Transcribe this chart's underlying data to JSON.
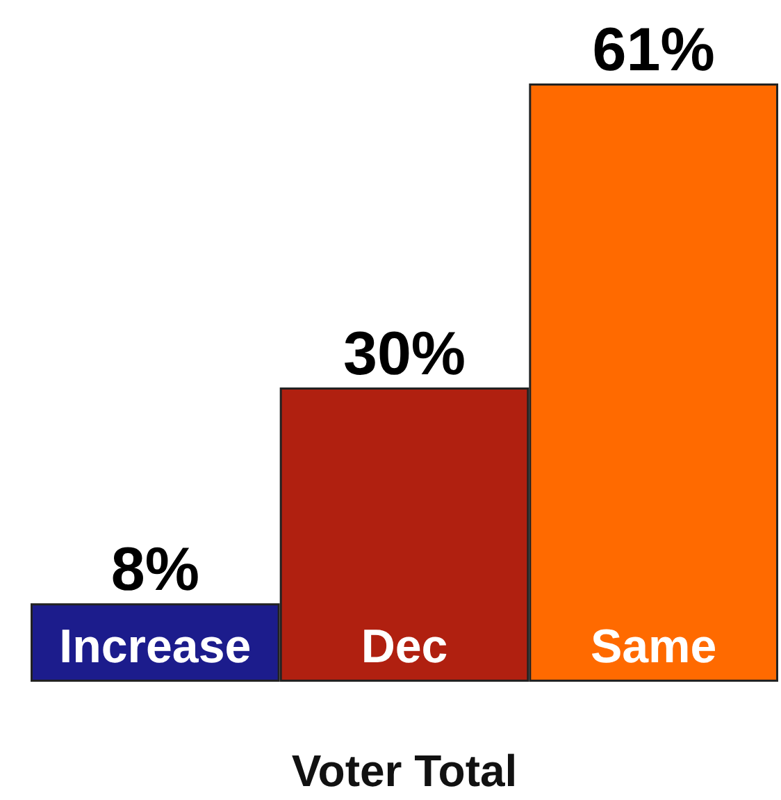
{
  "chart_data": {
    "type": "bar",
    "xlabel": "Voter Total",
    "categories": [
      "Increase",
      "Dec",
      "Same"
    ],
    "values": [
      8,
      30,
      61
    ],
    "colors": [
      "#1c1c8c",
      "#b02010",
      "#ff6a00"
    ],
    "value_labels": [
      "8%",
      "30%",
      "61%"
    ]
  }
}
